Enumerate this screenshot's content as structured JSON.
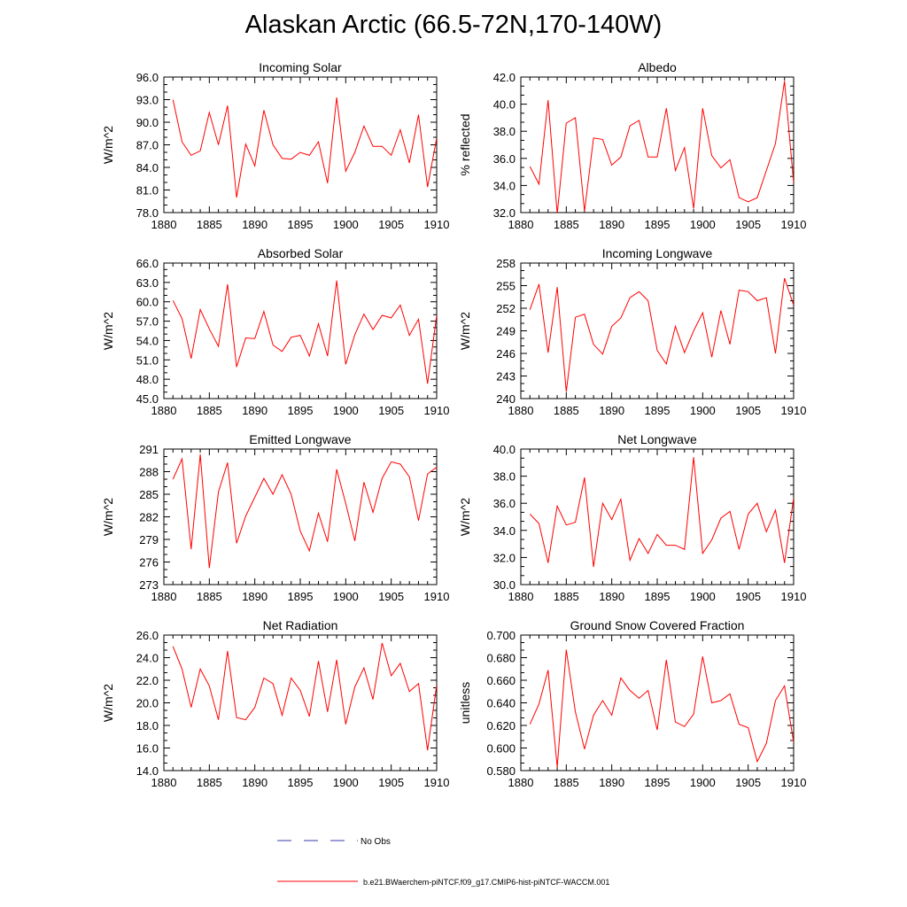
{
  "figure": {
    "title": "Alaskan Arctic (66.5-72N,170-140W)",
    "legend": {
      "obs_label": "No Obs",
      "obs_color": "#3a3aa8",
      "model_label": "b.e21.BWaerchem-piNTCF.f09_g17.CMIP6-hist-piNTCF-WACCM.001",
      "model_color": "#ff0000"
    }
  },
  "chart_data": [
    {
      "type": "line",
      "title": "Incoming Solar",
      "ylabel": "W/m^2",
      "xlim": [
        1880,
        1910
      ],
      "ylim": [
        78,
        96
      ],
      "yticks": [
        "78.0",
        "81.0",
        "84.0",
        "87.0",
        "90.0",
        "93.0",
        "96.0"
      ],
      "xticks": [
        "1880",
        "1885",
        "1890",
        "1895",
        "1900",
        "1905",
        "1910"
      ],
      "x": [
        1881,
        1882,
        1883,
        1884,
        1885,
        1886,
        1887,
        1888,
        1889,
        1890,
        1891,
        1892,
        1893,
        1894,
        1895,
        1896,
        1897,
        1898,
        1899,
        1900,
        1901,
        1902,
        1903,
        1904,
        1905,
        1906,
        1907,
        1908,
        1909,
        1910
      ],
      "values": [
        93.0,
        87.4,
        85.6,
        86.2,
        91.3,
        87.0,
        92.2,
        80.0,
        87.1,
        84.2,
        91.6,
        87.0,
        85.2,
        85.1,
        86.0,
        85.6,
        87.4,
        81.9,
        93.3,
        83.5,
        86.0,
        89.5,
        86.8,
        86.8,
        85.6,
        89.0,
        84.6,
        91.0,
        81.4,
        87.9
      ],
      "color": "#ff0000"
    },
    {
      "type": "line",
      "title": "Albedo",
      "ylabel": "% reflected",
      "xlim": [
        1880,
        1910
      ],
      "ylim": [
        32,
        42
      ],
      "yticks": [
        "32.0",
        "34.0",
        "36.0",
        "38.0",
        "40.0",
        "42.0"
      ],
      "xticks": [
        "1880",
        "1885",
        "1890",
        "1895",
        "1900",
        "1905",
        "1910"
      ],
      "x": [
        1881,
        1882,
        1883,
        1884,
        1885,
        1886,
        1887,
        1888,
        1889,
        1890,
        1891,
        1892,
        1893,
        1894,
        1895,
        1896,
        1897,
        1898,
        1899,
        1900,
        1901,
        1902,
        1903,
        1904,
        1905,
        1906,
        1907,
        1908,
        1909,
        1910
      ],
      "values": [
        35.4,
        34.1,
        40.3,
        31.9,
        38.6,
        39.0,
        32.1,
        37.5,
        37.4,
        35.5,
        36.1,
        38.4,
        38.8,
        36.1,
        36.1,
        39.7,
        35.1,
        36.8,
        32.3,
        39.7,
        36.2,
        35.3,
        35.9,
        33.1,
        32.8,
        33.1,
        35.1,
        37.1,
        41.7,
        34.2
      ],
      "color": "#ff0000"
    },
    {
      "type": "line",
      "title": "Absorbed Solar",
      "ylabel": "W/m^2",
      "xlim": [
        1880,
        1910
      ],
      "ylim": [
        45,
        66
      ],
      "yticks": [
        "45.0",
        "48.0",
        "51.0",
        "54.0",
        "57.0",
        "60.0",
        "63.0",
        "66.0"
      ],
      "xticks": [
        "1880",
        "1885",
        "1890",
        "1895",
        "1900",
        "1905",
        "1910"
      ],
      "x": [
        1881,
        1882,
        1883,
        1884,
        1885,
        1886,
        1887,
        1888,
        1889,
        1890,
        1891,
        1892,
        1893,
        1894,
        1895,
        1896,
        1897,
        1898,
        1899,
        1900,
        1901,
        1902,
        1903,
        1904,
        1905,
        1906,
        1907,
        1908,
        1909,
        1910
      ],
      "values": [
        60.2,
        57.4,
        51.2,
        58.8,
        55.8,
        53.1,
        62.7,
        49.9,
        54.4,
        54.3,
        58.5,
        53.3,
        52.3,
        54.5,
        54.8,
        51.6,
        56.6,
        51.6,
        63.3,
        50.3,
        54.9,
        58.1,
        55.7,
        57.9,
        57.5,
        59.5,
        54.8,
        57.3,
        47.3,
        57.9
      ],
      "color": "#ff0000"
    },
    {
      "type": "line",
      "title": "Incoming Longwave",
      "ylabel": "W/m^2",
      "xlim": [
        1880,
        1910
      ],
      "ylim": [
        240,
        258
      ],
      "yticks": [
        "240",
        "243",
        "246",
        "249",
        "252",
        "255",
        "258"
      ],
      "xticks": [
        "1880",
        "1885",
        "1890",
        "1895",
        "1900",
        "1905",
        "1910"
      ],
      "x": [
        1881,
        1882,
        1883,
        1884,
        1885,
        1886,
        1887,
        1888,
        1889,
        1890,
        1891,
        1892,
        1893,
        1894,
        1895,
        1896,
        1897,
        1898,
        1899,
        1900,
        1901,
        1902,
        1903,
        1904,
        1905,
        1906,
        1907,
        1908,
        1909,
        1910
      ],
      "values": [
        251.8,
        255.2,
        246.1,
        254.8,
        240.9,
        250.8,
        251.2,
        247.2,
        245.9,
        249.6,
        250.7,
        253.4,
        254.2,
        253.0,
        246.4,
        244.6,
        249.6,
        246.1,
        249.0,
        251.4,
        245.5,
        251.7,
        247.2,
        254.4,
        254.2,
        253.0,
        253.4,
        246.0,
        256.0,
        252.4
      ],
      "color": "#ff0000"
    },
    {
      "type": "line",
      "title": "Emitted Longwave",
      "ylabel": "W/m^2",
      "xlim": [
        1880,
        1910
      ],
      "ylim": [
        273,
        291
      ],
      "yticks": [
        "273",
        "276",
        "279",
        "282",
        "285",
        "288",
        "291"
      ],
      "xticks": [
        "1880",
        "1885",
        "1890",
        "1895",
        "1900",
        "1905",
        "1910"
      ],
      "x": [
        1881,
        1882,
        1883,
        1884,
        1885,
        1886,
        1887,
        1888,
        1889,
        1890,
        1891,
        1892,
        1893,
        1894,
        1895,
        1896,
        1897,
        1898,
        1899,
        1900,
        1901,
        1902,
        1903,
        1904,
        1905,
        1906,
        1907,
        1908,
        1909,
        1910
      ],
      "values": [
        287.0,
        289.7,
        277.7,
        290.3,
        275.2,
        285.3,
        289.2,
        278.5,
        282.1,
        284.6,
        287.1,
        285.0,
        287.6,
        285.0,
        280.1,
        277.5,
        282.5,
        278.7,
        288.3,
        283.8,
        278.8,
        286.6,
        282.6,
        287.1,
        289.3,
        289.0,
        287.3,
        281.5,
        287.7,
        288.6
      ],
      "color": "#ff0000"
    },
    {
      "type": "line",
      "title": "Net Longwave",
      "ylabel": "W/m^2",
      "xlim": [
        1880,
        1910
      ],
      "ylim": [
        30,
        40
      ],
      "yticks": [
        "30.0",
        "32.0",
        "34.0",
        "36.0",
        "38.0",
        "40.0"
      ],
      "xticks": [
        "1880",
        "1885",
        "1890",
        "1895",
        "1900",
        "1905",
        "1910"
      ],
      "x": [
        1881,
        1882,
        1883,
        1884,
        1885,
        1886,
        1887,
        1888,
        1889,
        1890,
        1891,
        1892,
        1893,
        1894,
        1895,
        1896,
        1897,
        1898,
        1899,
        1900,
        1901,
        1902,
        1903,
        1904,
        1905,
        1906,
        1907,
        1908,
        1909,
        1910
      ],
      "values": [
        35.2,
        34.5,
        31.6,
        35.8,
        34.4,
        34.6,
        37.9,
        31.3,
        36.0,
        34.8,
        36.3,
        31.8,
        33.4,
        32.3,
        33.7,
        32.9,
        32.9,
        32.6,
        39.4,
        32.3,
        33.3,
        34.9,
        35.4,
        32.6,
        35.2,
        36.0,
        33.9,
        35.5,
        31.6,
        36.4
      ],
      "color": "#ff0000"
    },
    {
      "type": "line",
      "title": "Net Radiation",
      "ylabel": "W/m^2",
      "xlim": [
        1880,
        1910
      ],
      "ylim": [
        14,
        26
      ],
      "yticks": [
        "14.0",
        "16.0",
        "18.0",
        "20.0",
        "22.0",
        "24.0",
        "26.0"
      ],
      "xticks": [
        "1880",
        "1885",
        "1890",
        "1895",
        "1900",
        "1905",
        "1910"
      ],
      "x": [
        1881,
        1882,
        1883,
        1884,
        1885,
        1886,
        1887,
        1888,
        1889,
        1890,
        1891,
        1892,
        1893,
        1894,
        1895,
        1896,
        1897,
        1898,
        1899,
        1900,
        1901,
        1902,
        1903,
        1904,
        1905,
        1906,
        1907,
        1908,
        1909,
        1910
      ],
      "values": [
        25.0,
        23.0,
        19.6,
        23.0,
        21.5,
        18.5,
        24.6,
        18.7,
        18.5,
        19.6,
        22.2,
        21.7,
        18.9,
        22.2,
        21.1,
        18.8,
        23.7,
        19.2,
        23.8,
        18.1,
        21.4,
        23.1,
        20.3,
        25.3,
        22.4,
        23.5,
        21.0,
        21.7,
        15.8,
        21.6
      ],
      "color": "#ff0000"
    },
    {
      "type": "line",
      "title": "Ground Snow Covered Fraction",
      "ylabel": "unitless",
      "xlim": [
        1880,
        1910
      ],
      "ylim": [
        0.58,
        0.7
      ],
      "yticks": [
        "0.580",
        "0.600",
        "0.620",
        "0.640",
        "0.660",
        "0.680",
        "0.700"
      ],
      "xticks": [
        "1880",
        "1885",
        "1890",
        "1895",
        "1900",
        "1905",
        "1910"
      ],
      "x": [
        1881,
        1882,
        1883,
        1884,
        1885,
        1886,
        1887,
        1888,
        1889,
        1890,
        1891,
        1892,
        1893,
        1894,
        1895,
        1896,
        1897,
        1898,
        1899,
        1900,
        1901,
        1902,
        1903,
        1904,
        1905,
        1906,
        1907,
        1908,
        1909,
        1910
      ],
      "values": [
        0.621,
        0.639,
        0.669,
        0.583,
        0.687,
        0.632,
        0.599,
        0.629,
        0.642,
        0.629,
        0.662,
        0.651,
        0.644,
        0.651,
        0.616,
        0.678,
        0.623,
        0.619,
        0.63,
        0.681,
        0.64,
        0.642,
        0.648,
        0.621,
        0.618,
        0.588,
        0.604,
        0.642,
        0.655,
        0.605
      ],
      "color": "#ff0000"
    }
  ]
}
